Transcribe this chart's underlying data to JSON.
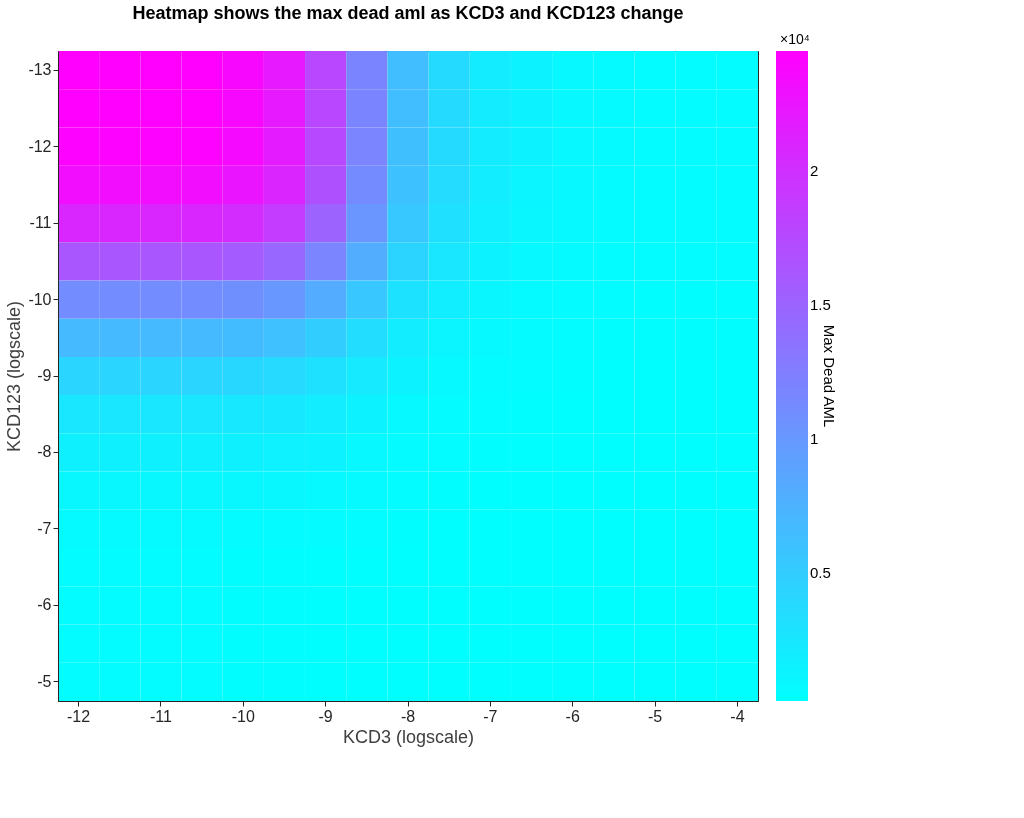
{
  "chart_data": {
    "type": "heatmap",
    "title": "Heatmap shows the max dead aml as KCD3 and KCD123 change",
    "xlabel": "KCD3 (logscale)",
    "ylabel": "KCD123 (logscale)",
    "clabel": "Max Dead AML",
    "annotations": [
      "×10⁴"
    ],
    "categories": [
      "-12",
      null,
      "-11",
      null,
      "-10",
      null,
      "-9",
      null,
      "-8",
      null,
      "-7",
      null,
      "-6",
      null,
      "-5",
      null,
      "-4"
    ],
    "y_categories": [
      "-13",
      null,
      "-12",
      null,
      "-11",
      null,
      "-10",
      null,
      "-9",
      null,
      "-8",
      null,
      "-7",
      null,
      "-6",
      null,
      "-5"
    ],
    "cells": [
      [
        2.45,
        2.45,
        2.45,
        2.45,
        2.38,
        2.21,
        1.77,
        1.19,
        0.64,
        0.37,
        0.2,
        0.13,
        0.09,
        0.07,
        0.05,
        0.05,
        0.05
      ],
      [
        2.45,
        2.45,
        2.45,
        2.45,
        2.38,
        2.21,
        1.77,
        1.19,
        0.64,
        0.37,
        0.2,
        0.13,
        0.09,
        0.07,
        0.05,
        0.05,
        0.05
      ],
      [
        2.43,
        2.43,
        2.43,
        2.43,
        2.35,
        2.19,
        1.76,
        1.18,
        0.63,
        0.37,
        0.2,
        0.13,
        0.09,
        0.07,
        0.05,
        0.05,
        0.05
      ],
      [
        2.33,
        2.33,
        2.33,
        2.33,
        2.26,
        2.1,
        1.69,
        1.13,
        0.6,
        0.35,
        0.19,
        0.12,
        0.09,
        0.06,
        0.05,
        0.05,
        0.05
      ],
      [
        2.09,
        2.09,
        2.09,
        2.09,
        2.03,
        1.88,
        1.51,
        1.02,
        0.54,
        0.32,
        0.17,
        0.11,
        0.08,
        0.06,
        0.05,
        0.05,
        0.05
      ],
      [
        1.63,
        1.63,
        1.63,
        1.63,
        1.58,
        1.47,
        1.18,
        0.8,
        0.43,
        0.25,
        0.14,
        0.09,
        0.07,
        0.05,
        0.05,
        0.05,
        0.05
      ],
      [
        1.12,
        1.12,
        1.12,
        1.12,
        1.09,
        1.01,
        0.81,
        0.55,
        0.3,
        0.18,
        0.11,
        0.07,
        0.06,
        0.05,
        0.04,
        0.04,
        0.04
      ],
      [
        0.68,
        0.68,
        0.68,
        0.68,
        0.66,
        0.62,
        0.5,
        0.34,
        0.19,
        0.12,
        0.08,
        0.06,
        0.05,
        0.04,
        0.04,
        0.04,
        0.04
      ],
      [
        0.42,
        0.42,
        0.42,
        0.42,
        0.4,
        0.38,
        0.31,
        0.22,
        0.13,
        0.08,
        0.06,
        0.05,
        0.04,
        0.03,
        0.03,
        0.03,
        0.03
      ],
      [
        0.25,
        0.25,
        0.25,
        0.25,
        0.24,
        0.23,
        0.19,
        0.13,
        0.08,
        0.06,
        0.05,
        0.04,
        0.03,
        0.03,
        0.03,
        0.03,
        0.03
      ],
      [
        0.16,
        0.16,
        0.16,
        0.16,
        0.16,
        0.15,
        0.13,
        0.09,
        0.06,
        0.05,
        0.04,
        0.03,
        0.03,
        0.03,
        0.03,
        0.03,
        0.03
      ],
      [
        0.1,
        0.1,
        0.1,
        0.1,
        0.1,
        0.1,
        0.08,
        0.07,
        0.05,
        0.04,
        0.03,
        0.03,
        0.03,
        0.03,
        0.03,
        0.03,
        0.03
      ],
      [
        0.07,
        0.07,
        0.07,
        0.07,
        0.06,
        0.06,
        0.06,
        0.05,
        0.04,
        0.03,
        0.03,
        0.03,
        0.03,
        0.03,
        0.03,
        0.03,
        0.03
      ],
      [
        0.05,
        0.05,
        0.05,
        0.05,
        0.04,
        0.04,
        0.03,
        0.03,
        0.03,
        0.03,
        0.03,
        0.03,
        0.03,
        0.03,
        0.03,
        0.03,
        0.03
      ],
      [
        0.05,
        0.05,
        0.05,
        0.05,
        0.04,
        0.04,
        0.03,
        0.03,
        0.03,
        0.03,
        0.03,
        0.03,
        0.03,
        0.03,
        0.03,
        0.03,
        0.03
      ],
      [
        0.05,
        0.05,
        0.05,
        0.05,
        0.04,
        0.04,
        0.03,
        0.03,
        0.03,
        0.03,
        0.03,
        0.03,
        0.03,
        0.03,
        0.03,
        0.03,
        0.03
      ],
      [
        0.05,
        0.05,
        0.05,
        0.05,
        0.04,
        0.04,
        0.03,
        0.03,
        0.03,
        0.03,
        0.03,
        0.03,
        0.03,
        0.03,
        0.03,
        0.03,
        0.03
      ]
    ],
    "colors": [
      "#00ffff",
      "#ff00ff"
    ],
    "clim": [
      0.02,
      2.45
    ],
    "cticks": [
      0.5,
      1,
      1.5,
      2
    ],
    "grid": false
  }
}
